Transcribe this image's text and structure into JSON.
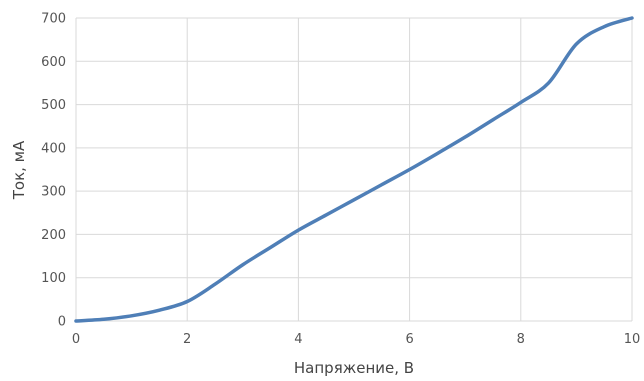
{
  "chart_data": {
    "type": "line",
    "title": "",
    "xlabel": "Напряжение, В",
    "ylabel": "Ток, мА",
    "xlim": [
      0,
      10
    ],
    "ylim": [
      0,
      700
    ],
    "x_ticks": [
      0,
      2,
      4,
      6,
      8,
      10
    ],
    "y_ticks": [
      0,
      100,
      200,
      300,
      400,
      500,
      600,
      700
    ],
    "grid": true,
    "legend": "none",
    "series": [
      {
        "color": "#4f7fb7",
        "x": [
          0,
          0.5,
          1,
          1.5,
          2,
          2.5,
          3,
          3.5,
          4,
          4.5,
          5,
          5.5,
          6,
          6.5,
          7,
          7.5,
          8,
          8.5,
          9,
          9.5,
          10
        ],
        "y": [
          0,
          4,
          12,
          25,
          45,
          85,
          130,
          170,
          210,
          245,
          280,
          315,
          350,
          387,
          425,
          465,
          505,
          550,
          640,
          680,
          700
        ]
      }
    ]
  }
}
